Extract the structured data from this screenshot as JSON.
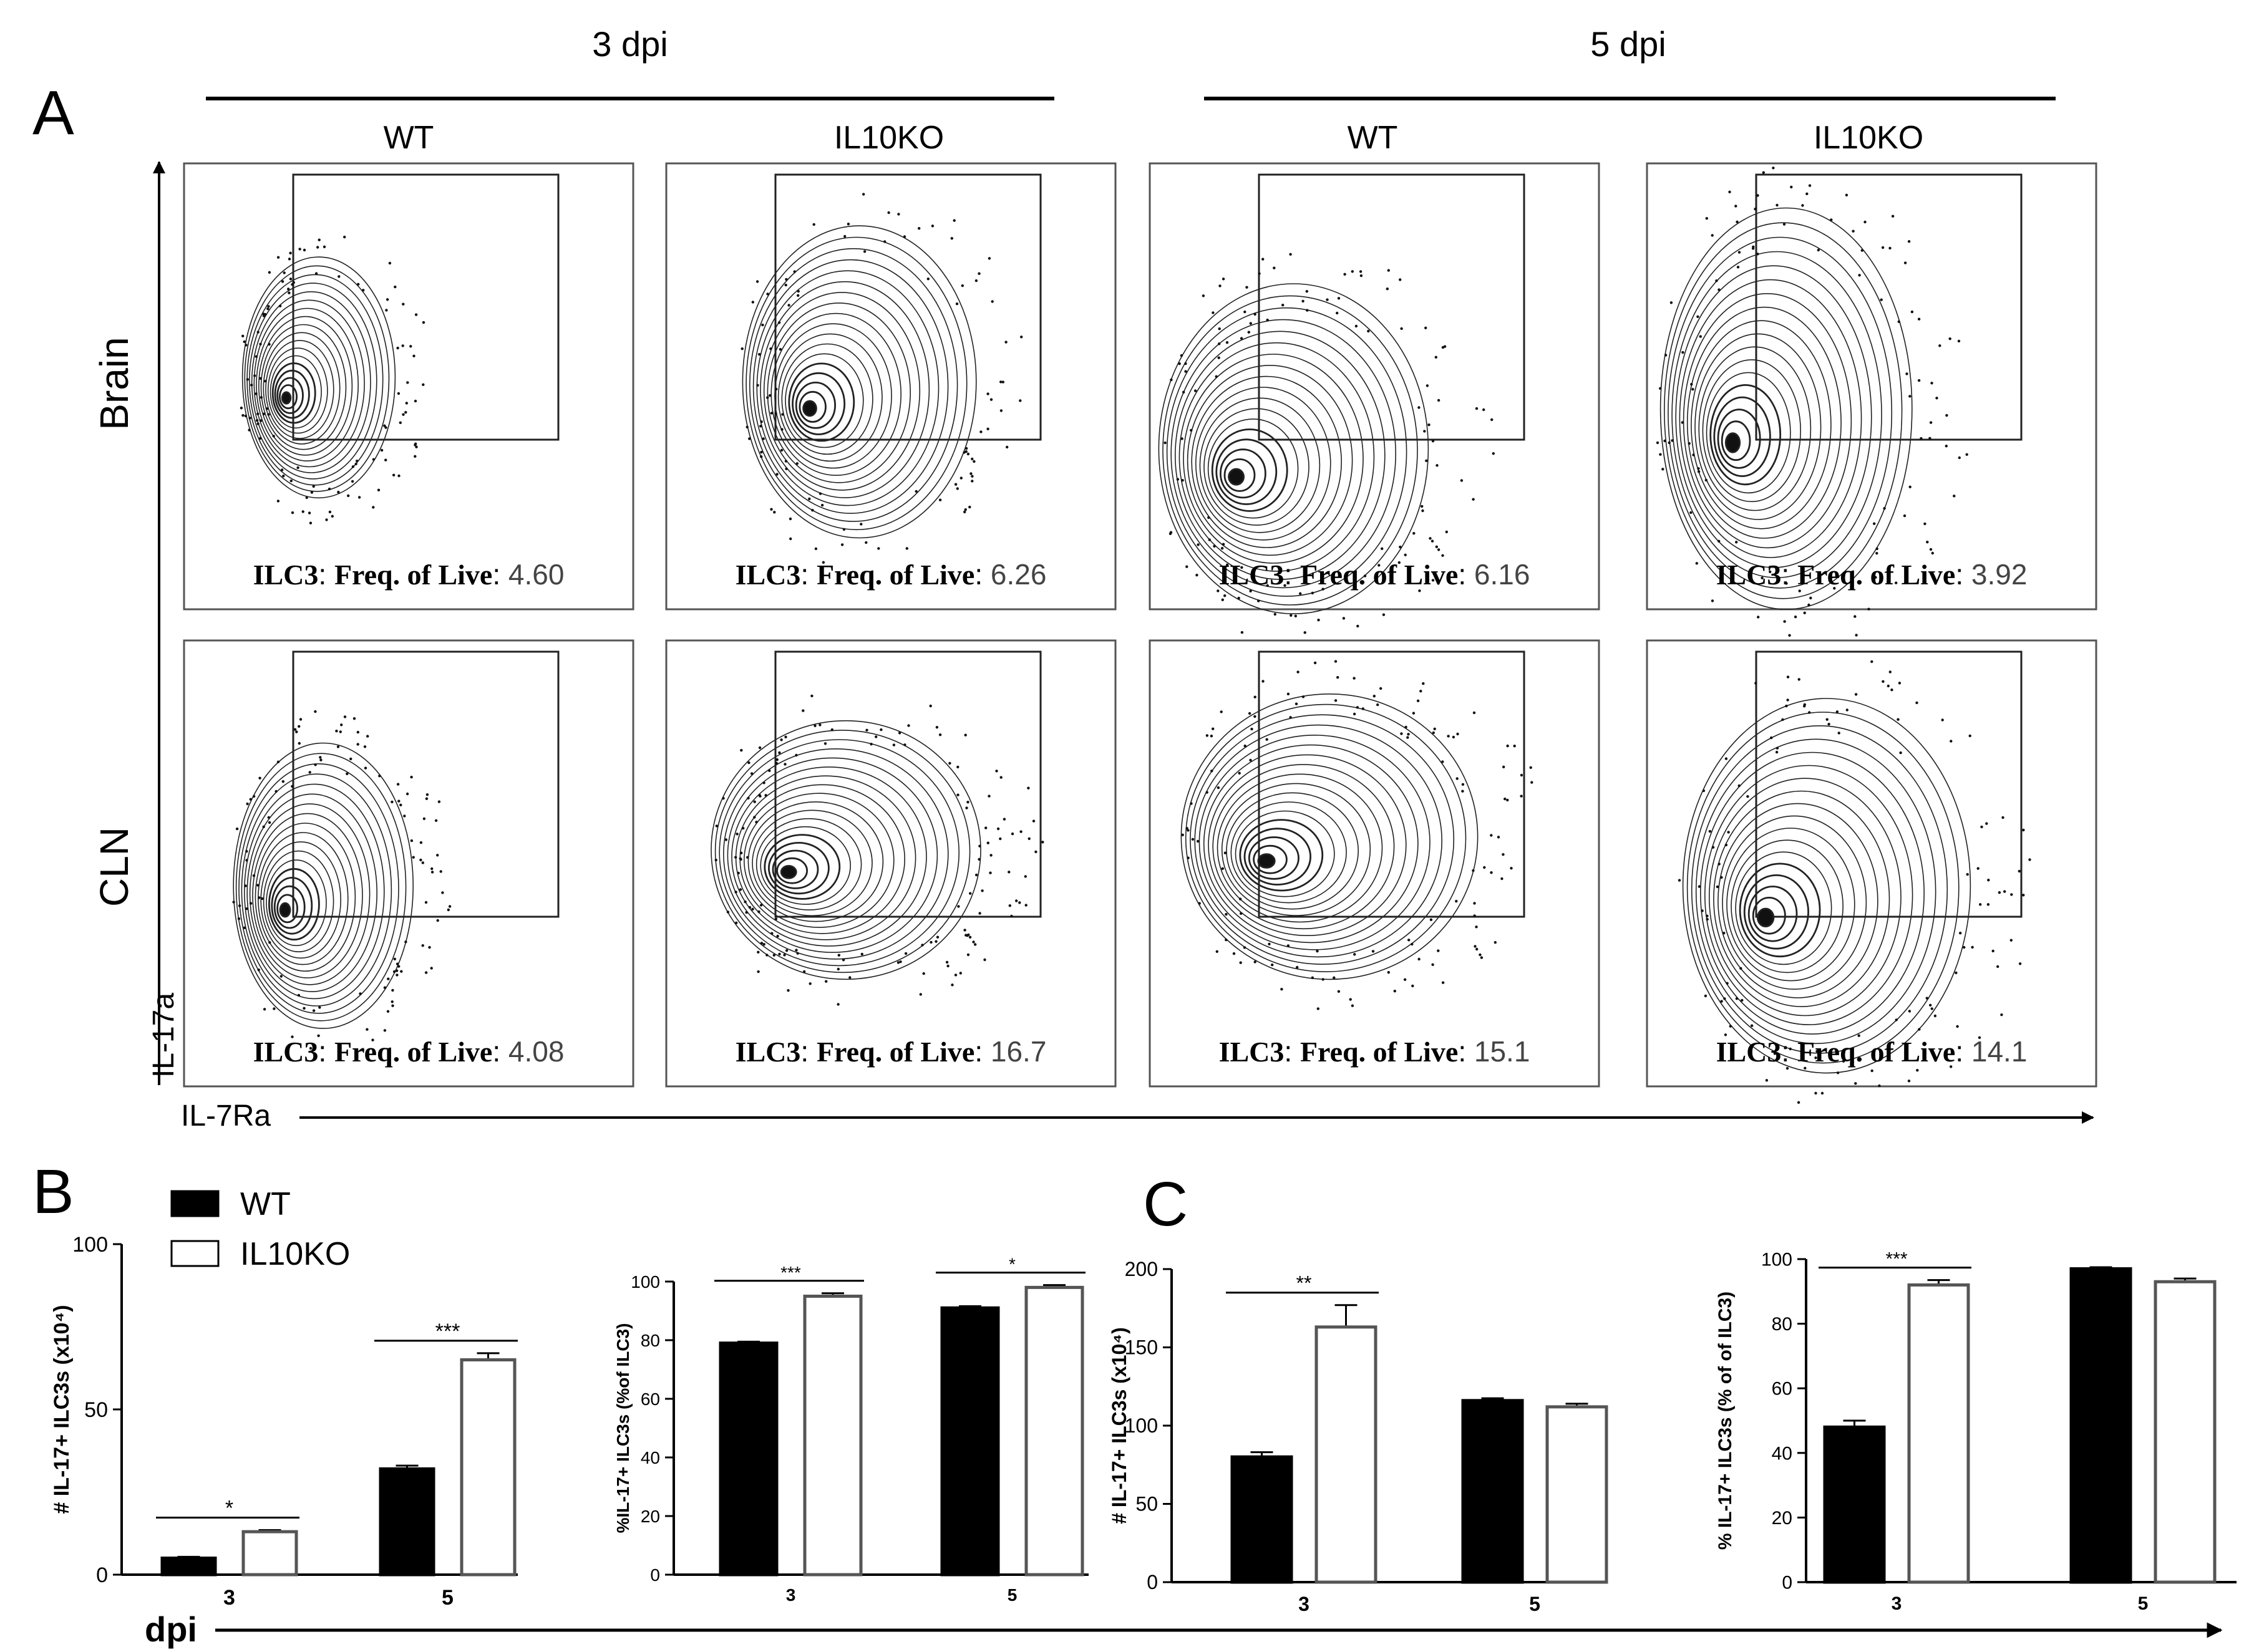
{
  "panel_labels": {
    "a": "A",
    "b": "B",
    "c": "C"
  },
  "flow": {
    "timepoints": [
      "3 dpi",
      "5 dpi"
    ],
    "conditions": [
      "WT",
      "IL10KO",
      "WT",
      "IL10KO"
    ],
    "tissues": [
      "Brain",
      "CLN"
    ],
    "y_axis_label": "IL-17a",
    "x_axis_label": "IL-7Ra",
    "gate_label_bold": "ILC3",
    "gate_label_sep": ": ",
    "gate_label_text": "Freq. of Live",
    "gate_label_colon": ": ",
    "frequencies": [
      [
        "4.60",
        "6.26",
        "6.16",
        "3.92"
      ],
      [
        "4.08",
        "16.7",
        "15.1",
        "14.1"
      ]
    ]
  },
  "legend": {
    "wt": "WT",
    "ko": "IL10KO",
    "wt_color": "#000000",
    "ko_color": "#ffffff"
  },
  "dpi_axis_label": "dpi",
  "chart_data": [
    {
      "type": "bar",
      "id": "b1",
      "panel": "B",
      "categories": [
        "3",
        "5"
      ],
      "series": [
        {
          "name": "WT",
          "values": [
            5,
            32
          ]
        },
        {
          "name": "IL10KO",
          "values": [
            13,
            65
          ]
        }
      ],
      "errors": [
        [
          0.4,
          1
        ],
        [
          0.5,
          2
        ]
      ],
      "ylabel": "# IL-17+ ILC3s (x10⁴)",
      "ylim": [
        0,
        100
      ],
      "yticks": [
        "0",
        "50",
        "100"
      ],
      "significance": [
        {
          "category": "3",
          "label": "*"
        },
        {
          "category": "5",
          "label": "***"
        }
      ]
    },
    {
      "type": "bar",
      "id": "b2",
      "panel": "B",
      "categories": [
        "3",
        "5"
      ],
      "series": [
        {
          "name": "WT",
          "values": [
            79,
            91
          ]
        },
        {
          "name": "IL10KO",
          "values": [
            95,
            98
          ]
        }
      ],
      "errors": [
        [
          0.5,
          0.6
        ],
        [
          1,
          0.8
        ]
      ],
      "ylabel": "%IL-17+ ILC3s (%of ILC3)",
      "ylim": [
        0,
        100
      ],
      "yticks": [
        "0",
        "20",
        "40",
        "60",
        "80",
        "100"
      ],
      "significance": [
        {
          "category": "3",
          "label": "***"
        },
        {
          "category": "5",
          "label": "*"
        }
      ]
    },
    {
      "type": "bar",
      "id": "c1",
      "panel": "C",
      "categories": [
        "3",
        "5"
      ],
      "series": [
        {
          "name": "WT",
          "values": [
            80,
            116
          ]
        },
        {
          "name": "IL10KO",
          "values": [
            163,
            112
          ]
        }
      ],
      "errors": [
        [
          3,
          1.5
        ],
        [
          14,
          2
        ]
      ],
      "ylabel": "# IL-17+ ILC3s (x10⁴)",
      "ylim": [
        0,
        200
      ],
      "yticks": [
        "0",
        "50",
        "100",
        "150",
        "200"
      ],
      "significance": [
        {
          "category": "3",
          "label": "**"
        }
      ]
    },
    {
      "type": "bar",
      "id": "c2",
      "panel": "C",
      "categories": [
        "3",
        "5"
      ],
      "series": [
        {
          "name": "WT",
          "values": [
            48,
            97
          ]
        },
        {
          "name": "IL10KO",
          "values": [
            92,
            93
          ]
        }
      ],
      "errors": [
        [
          2,
          0.5
        ],
        [
          1.5,
          1
        ]
      ],
      "ylabel": "% IL-17+ ILC3s (% of of ILC3)",
      "ylim": [
        0,
        100
      ],
      "yticks": [
        "0",
        "20",
        "40",
        "60",
        "80",
        "100"
      ],
      "significance": [
        {
          "category": "3",
          "label": "***"
        }
      ]
    }
  ]
}
